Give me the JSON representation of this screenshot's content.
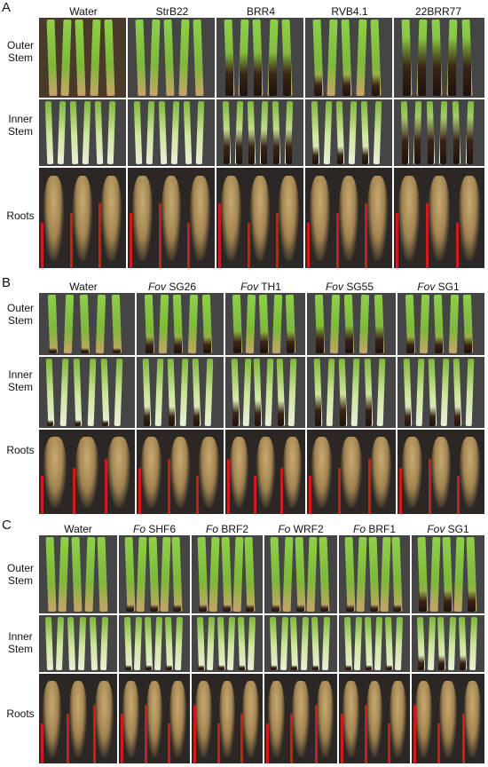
{
  "panels": [
    {
      "letter": "A",
      "columns": [
        "Water",
        "StrB22",
        "BRR4",
        "RVB4.1",
        "22BRR77"
      ],
      "rows": [
        "Outer\nStem",
        "Inner\nStem",
        "Roots"
      ]
    },
    {
      "letter": "B",
      "columns": [
        {
          "prefix": "",
          "name": "Water"
        },
        {
          "prefix": "Fov",
          "name": " SG26"
        },
        {
          "prefix": "Fov",
          "name": " TH1"
        },
        {
          "prefix": "Fov",
          "name": " SG55"
        },
        {
          "prefix": "Fov",
          "name": " SG1"
        }
      ],
      "rows": [
        "Outer\nStem",
        "Inner\nStem",
        "Roots"
      ]
    },
    {
      "letter": "C",
      "columns": [
        {
          "prefix": "",
          "name": "Water"
        },
        {
          "prefix": "Fo",
          "name": " SHF6"
        },
        {
          "prefix": "Fo",
          "name": " BRF2"
        },
        {
          "prefix": "Fo",
          "name": " WRF2"
        },
        {
          "prefix": "Fo",
          "name": " BRF1"
        },
        {
          "prefix": "Fov",
          "name": " SG1"
        }
      ],
      "rows": [
        "Outer\nStem",
        "Inner\nStem",
        "Roots"
      ]
    }
  ],
  "colors": {
    "photo_bg": "#3a3a3a",
    "stem_green": "#7fb83a",
    "stem_pale": "#cfe6a0",
    "lesion": "#3b2418",
    "root": "#d8b87a",
    "scale_bar": "#d11a1a"
  }
}
